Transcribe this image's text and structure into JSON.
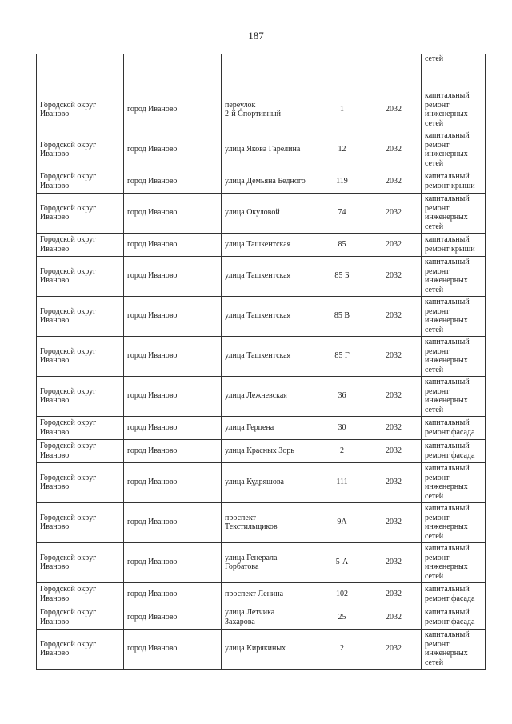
{
  "page_number": "187",
  "continued_row": {
    "work": "сетей"
  },
  "rows": [
    {
      "district": "Городской округ\nИваново",
      "city": "город Иваново",
      "street": "переулок\n2-й Спортивный",
      "house": "1",
      "year": "2032",
      "work": "капитальный\nремонт\nинженерных\nсетей"
    },
    {
      "district": "Городской округ\nИваново",
      "city": "город Иваново",
      "street": "улица Якова Гарелина",
      "house": "12",
      "year": "2032",
      "work": "капитальный\nремонт\nинженерных\nсетей"
    },
    {
      "district": "Городской округ\nИваново",
      "city": "город Иваново",
      "street": "улица Демьяна Бедного",
      "house": "119",
      "year": "2032",
      "work": "капитальный\nремонт крыши"
    },
    {
      "district": "Городской округ\nИваново",
      "city": "город Иваново",
      "street": "улица Окуловой",
      "house": "74",
      "year": "2032",
      "work": "капитальный\nремонт\nинженерных\nсетей"
    },
    {
      "district": "Городской округ\nИваново",
      "city": "город Иваново",
      "street": "улица Ташкентская",
      "house": "85",
      "year": "2032",
      "work": "капитальный\nремонт крыши"
    },
    {
      "district": "Городской округ\nИваново",
      "city": "город Иваново",
      "street": "улица Ташкентская",
      "house": "85 Б",
      "year": "2032",
      "work": "капитальный\nремонт\nинженерных\nсетей"
    },
    {
      "district": "Городской округ\nИваново",
      "city": "город Иваново",
      "street": "улица Ташкентская",
      "house": "85 В",
      "year": "2032",
      "work": "капитальный\nремонт\nинженерных\nсетей"
    },
    {
      "district": "Городской округ\nИваново",
      "city": "город Иваново",
      "street": "улица Ташкентская",
      "house": "85 Г",
      "year": "2032",
      "work": "капитальный\nремонт\nинженерных\nсетей"
    },
    {
      "district": "Городской округ\nИваново",
      "city": "город Иваново",
      "street": "улица Лежневская",
      "house": "36",
      "year": "2032",
      "work": "капитальный\nремонт\nинженерных\nсетей"
    },
    {
      "district": "Городской округ\nИваново",
      "city": "город Иваново",
      "street": "улица Герцена",
      "house": "30",
      "year": "2032",
      "work": "капитальный\nремонт фасада"
    },
    {
      "district": "Городской округ\nИваново",
      "city": "город Иваново",
      "street": "улица Красных Зорь",
      "house": "2",
      "year": "2032",
      "work": "капитальный\nремонт фасада"
    },
    {
      "district": "Городской округ\nИваново",
      "city": "город Иваново",
      "street": "улица Кудряшова",
      "house": "111",
      "year": "2032",
      "work": "капитальный\nремонт\nинженерных\nсетей"
    },
    {
      "district": "Городской округ\nИваново",
      "city": "город Иваново",
      "street": "проспект\nТекстильщиков",
      "house": "9А",
      "year": "2032",
      "work": "капитальный\nремонт\nинженерных\nсетей"
    },
    {
      "district": "Городской округ\nИваново",
      "city": "город Иваново",
      "street": "улица Генерала\nГорбатова",
      "house": "5-А",
      "year": "2032",
      "work": "капитальный\nремонт\nинженерных\nсетей"
    },
    {
      "district": "Городской округ\nИваново",
      "city": "город Иваново",
      "street": "проспект Ленина",
      "house": "102",
      "year": "2032",
      "work": "капитальный\nремонт фасада"
    },
    {
      "district": "Городской округ\nИваново",
      "city": "город Иваново",
      "street": "улица Летчика\nЗахарова",
      "house": "25",
      "year": "2032",
      "work": "капитальный\nремонт фасада"
    },
    {
      "district": "Городской округ\nИваново",
      "city": "город Иваново",
      "street": "улица Кирякиных",
      "house": "2",
      "year": "2032",
      "work": "капитальный\nремонт\nинженерных\nсетей"
    }
  ]
}
